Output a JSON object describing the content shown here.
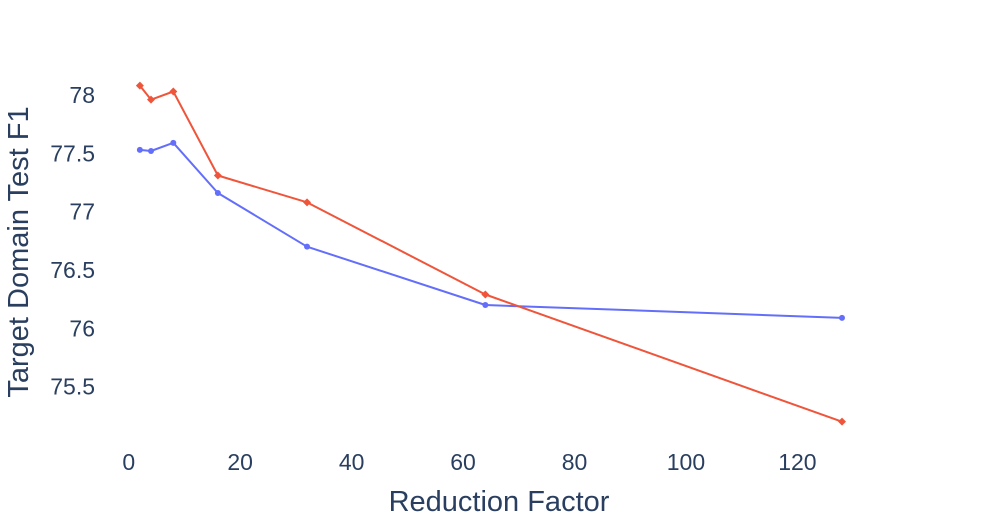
{
  "chart_data": {
    "type": "line",
    "title": "",
    "xlabel": "Reduction Factor",
    "ylabel": "Target Domain Test F1",
    "xlim": [
      -3,
      135
    ],
    "ylim": [
      75.0,
      78.3
    ],
    "xticks": [
      0,
      20,
      40,
      60,
      80,
      100,
      120
    ],
    "yticks": [
      75.5,
      76,
      76.5,
      77,
      77.5,
      78
    ],
    "xtick_labels": [
      "0",
      "20",
      "40",
      "60",
      "80",
      "100",
      "120"
    ],
    "ytick_labels": [
      "75.5",
      "76",
      "76.5",
      "77",
      "77.5",
      "78"
    ],
    "grid": false,
    "legend": "none",
    "series": [
      {
        "name": "series-blue",
        "color": "#636efa",
        "marker": "circle",
        "x": [
          2,
          4,
          8,
          16,
          32,
          64,
          128
        ],
        "values": [
          77.53,
          77.52,
          77.59,
          77.16,
          76.7,
          76.2,
          76.09
        ]
      },
      {
        "name": "series-red",
        "color": "#ef553b",
        "marker": "diamond",
        "x": [
          2,
          4,
          8,
          16,
          32,
          64,
          128
        ],
        "values": [
          78.08,
          77.96,
          78.03,
          77.31,
          77.08,
          76.29,
          75.2
        ]
      }
    ]
  }
}
